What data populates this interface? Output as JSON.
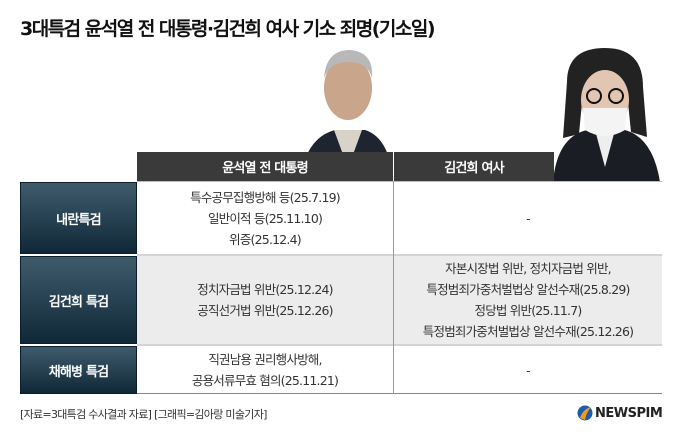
{
  "title": "3대특검 윤석열 전 대통령·김건희 여사 기소 죄명(기소일)",
  "columns": [
    "윤석열 전 대통령",
    "김건희 여사"
  ],
  "rows": [
    {
      "label": "내란특검",
      "yoon": [
        "특수공무집행방해 등(25.7.19)",
        "일반이적 등(25.11.10)",
        "위증(25.12.4)"
      ],
      "kim": [
        "-"
      ]
    },
    {
      "label": "김건희 특검",
      "yoon": [
        "정치자금법 위반(25.12.24)",
        "공직선거법 위반(25.12.26)"
      ],
      "kim": [
        "자본시장법 위반, 정치자금법 위반,",
        "특정범죄가중처벌법상 알선수재(25.8.29)",
        "정당법 위반(25.11.7)",
        "특정범죄가중처벌법상 알선수재(25.12.26)"
      ]
    },
    {
      "label": "채해병 특검",
      "yoon": [
        "직권남용 권리행사방해,",
        "공용서류무효 혐의(25.11.21)"
      ],
      "kim": [
        "-"
      ]
    }
  ],
  "footer": "[자료=3대특검 수사결과 자료] [그래픽=김아랑 미술기자]",
  "logo": "NEWSPIM",
  "colors": {
    "header": "#3a3a3a",
    "label": "#1d3a4a",
    "row_alt": "#ececec"
  }
}
